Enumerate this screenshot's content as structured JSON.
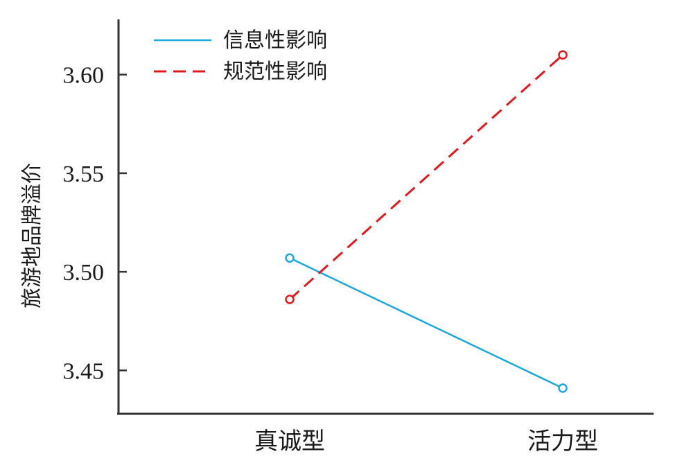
{
  "chart_data": {
    "type": "line",
    "title": "",
    "xlabel": "",
    "ylabel": "旅游地品牌溢价",
    "categories": [
      "真诚型",
      "活力型"
    ],
    "ylim": [
      3.428,
      3.628
    ],
    "yticks": [
      3.45,
      3.5,
      3.55,
      3.6
    ],
    "ytick_labels": [
      "3.45",
      "3.50",
      "3.55",
      "3.60"
    ],
    "grid": false,
    "legend_position": "top-left",
    "series": [
      {
        "name": "信息性影响",
        "values": [
          3.507,
          3.441
        ],
        "color": "#1aa7dc",
        "dash": "solid"
      },
      {
        "name": "规范性影响",
        "values": [
          3.486,
          3.61
        ],
        "color": "#e0191e",
        "dash": "dashed"
      }
    ]
  }
}
